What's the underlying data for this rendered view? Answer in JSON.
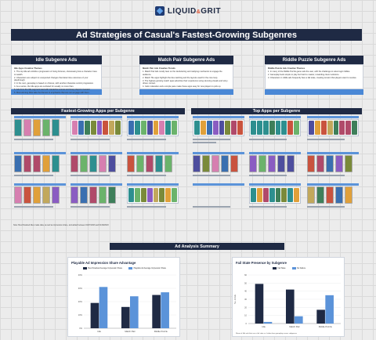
{
  "brand": {
    "name_left": "LIQUID",
    "name_amp": "&",
    "name_right": "GRIT"
  },
  "title": "Ad Strategies of Casual's Fastest-Growing Subgenres",
  "cards": [
    {
      "title": "Idle Subgenre Ads",
      "subtitle": "Idle Apps Creative Themes",
      "lines": [
        "1. The top idle ad unfolds a progression of rising fortunes, showcasing how a character rises to wealth.",
        "2. Characters are subject to unexpected changes that determine outcomes of your playthrough.",
        "3. In the next, gameplay is based on choices, with another character-centric progression.",
        "4. As a series, the Idle apps are surfaced for usually no more than.",
        "5. Ads from the Idle segment lead with interactive scenes and keep players invested.",
        "6. Most winning titles take the themes to emphasize that one can engage with them."
      ]
    },
    {
      "title": "Match Pair Subgenre Ads",
      "subtitle": "Match Pair Ads Creative Trends",
      "lines": [
        "1. Match Pair Ads mostly lean on the decluttering and mahjong mechanics to engage the audience.",
        "2. Match Tile apps highlight the tile-matching and the layouts used for the core loop.",
        "3. The highest-growing match apps advertise their experience using stunning visuals and story-driven context.",
        "4. Calm relaxation and a simple pace make these apps easy for new players to pick up."
      ]
    },
    {
      "title": "Riddle Puzzle Subgenre Ads",
      "subtitle": "Riddle Puzzle Ads Creative Themes",
      "lines": [
        "1. In many of the Riddle Puzzle game ads the user, with the challenge to solve logic riddles.",
        "2. Gameplay feels simple to play but hard to master, rewarding clever solutions.",
        "3. Characters in riddle ads frequently face a fail state, creating tension that players want to resolve."
      ]
    }
  ],
  "sections": {
    "fastest": "Fastest-Growing Apps per Subgenre",
    "top": "Top Apps per Subgenre"
  },
  "note": "Note: Benchmarked titles made data, as well as impression share, and added between 01/07/2023 and 01/09/2023",
  "summary_title": "Ad Analysis Summary",
  "chart_data": [
    {
      "type": "bar",
      "title": "Playable Ad Impression Share Advantage",
      "categories": [
        "Idle",
        "Match Pair",
        "Riddle Puzzle"
      ],
      "series": [
        {
          "name": "Benchmarked Average Impression Share",
          "values": [
            19,
            16,
            25
          ],
          "color": "#1f2a44"
        },
        {
          "name": "Playable Ad Average Impression Share",
          "values": [
            31,
            24,
            27
          ],
          "color": "#5b93d9"
        }
      ],
      "ylim": [
        0,
        40
      ],
      "yticks": [
        "0%",
        "10%",
        "20%",
        "30%",
        "40%"
      ],
      "xlabel": "",
      "ylabel": ""
    },
    {
      "type": "bar",
      "title": "Fail State Presence by Subgenre",
      "categories": [
        "Idle",
        "Match Pair",
        "Riddle Puzzle"
      ],
      "series": [
        {
          "name": "Fail State",
          "values": [
            49,
            42,
            17
          ],
          "color": "#1f2a44"
        },
        {
          "name": "No Failure",
          "values": [
            2,
            9,
            35
          ],
          "color": "#5b93d9"
        }
      ],
      "ylim": [
        0,
        60
      ],
      "yticks": [
        "0",
        "10",
        "20",
        "30",
        "40",
        "50",
        "60"
      ],
      "xlabel": "",
      "ylabel": "No. of Ads",
      "caption": "Share of Idle ads that use a fail state vs. failure-free gameplay across subgenres"
    }
  ]
}
